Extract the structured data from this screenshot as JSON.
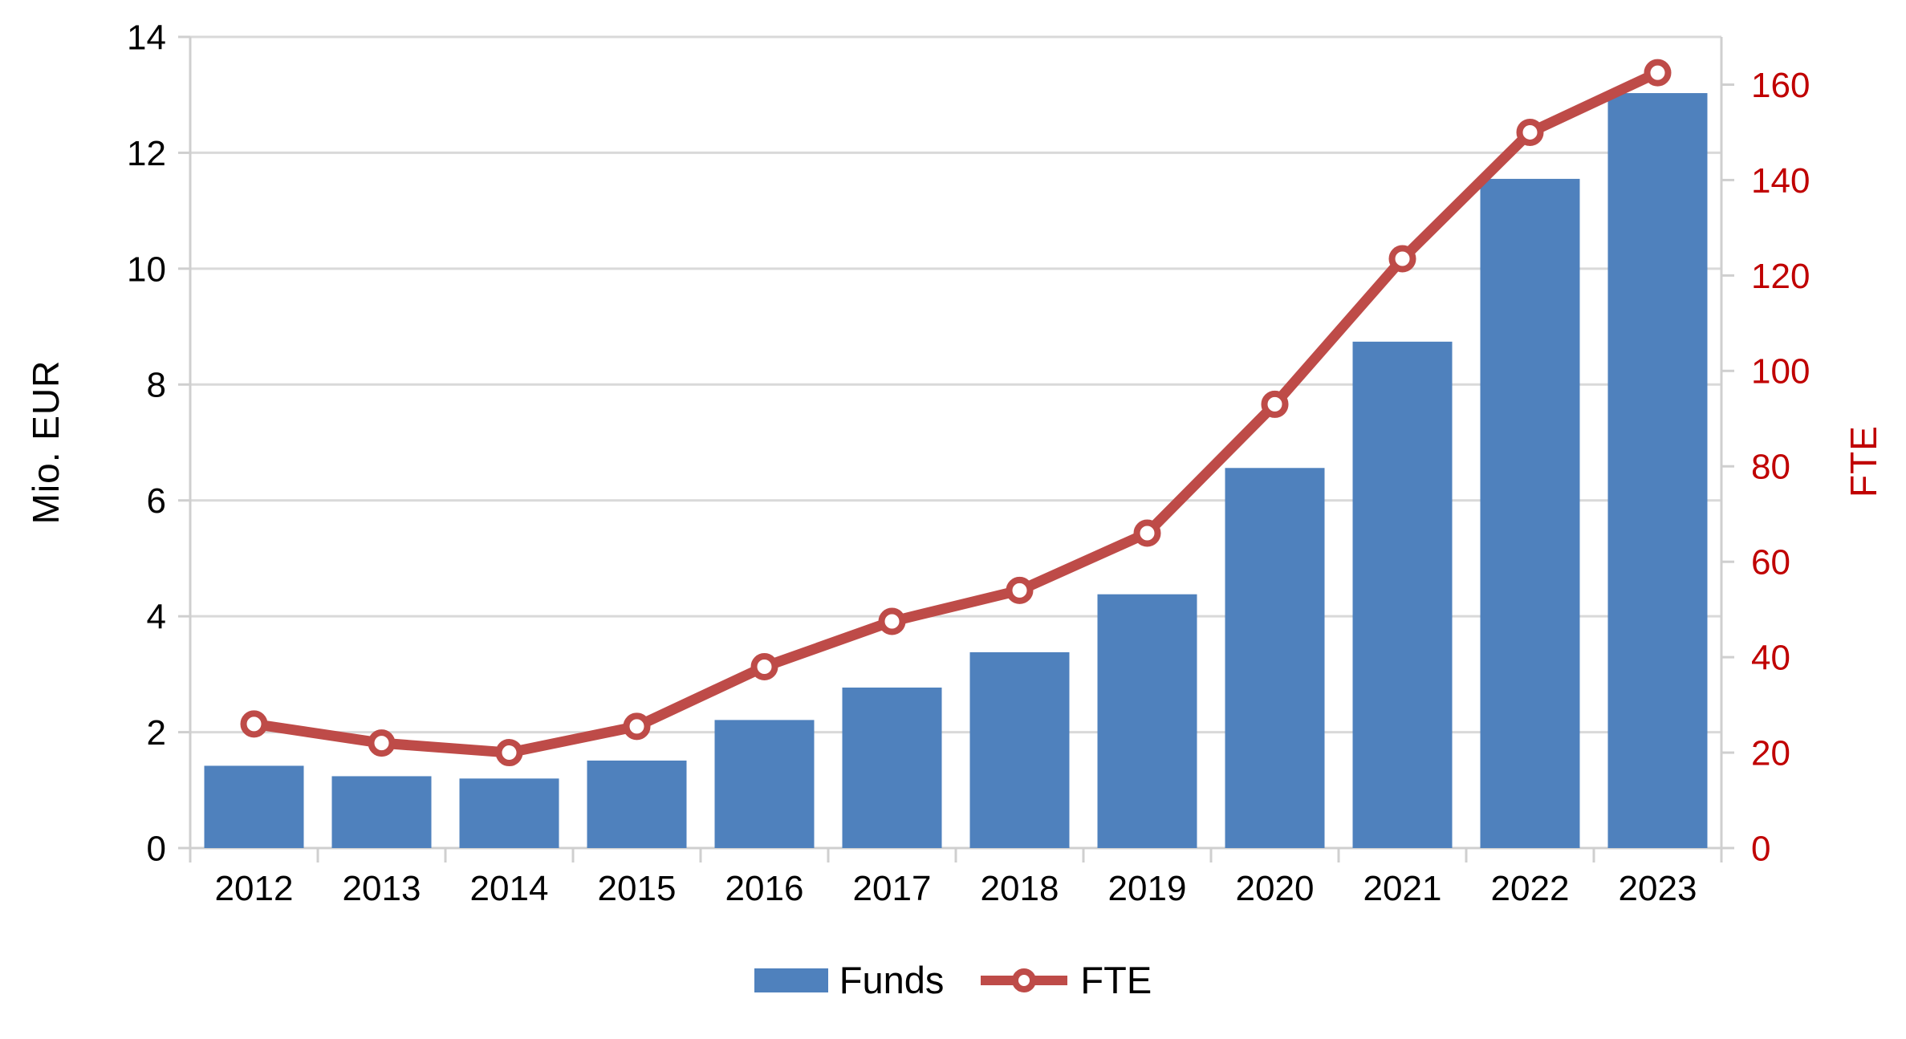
{
  "chart_data": {
    "type": "combo-bar-line",
    "categories": [
      "2012",
      "2013",
      "2014",
      "2015",
      "2016",
      "2017",
      "2018",
      "2019",
      "2020",
      "2021",
      "2022",
      "2023"
    ],
    "series": [
      {
        "name": "Funds",
        "type": "bar",
        "axis": "left",
        "values": [
          1.42,
          1.24,
          1.2,
          1.51,
          2.21,
          2.77,
          3.38,
          4.38,
          6.56,
          8.74,
          11.55,
          13.03
        ]
      },
      {
        "name": "FTE",
        "type": "line",
        "axis": "right",
        "values": [
          26,
          22,
          20,
          25.5,
          38,
          47.5,
          54,
          66,
          93,
          123.5,
          150,
          162.5
        ]
      }
    ],
    "left_axis": {
      "title": "Mio. EUR",
      "min": 0,
      "max": 14,
      "ticks": [
        0,
        2,
        4,
        6,
        8,
        10,
        12,
        14
      ]
    },
    "right_axis": {
      "title": "FTE",
      "min": 0,
      "max": 170,
      "ticks": [
        0,
        20,
        40,
        60,
        80,
        100,
        120,
        140,
        160
      ]
    },
    "grid": true,
    "legend_position": "bottom"
  },
  "colors": {
    "bar": "#4F81BD",
    "line": "#BE4B48",
    "marker_fill": "#FFFFFF",
    "right_axis_text": "#C00000",
    "left_axis_text": "#000000",
    "gridline": "#D9D9D9",
    "axis_line": "#CFCFCF"
  }
}
